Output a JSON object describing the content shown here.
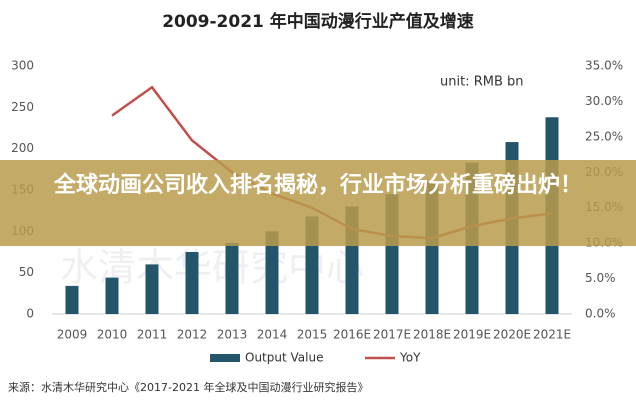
{
  "chart_data": {
    "type": "bar",
    "title": "2009-2021 年中国动漫行业产值及增速",
    "annotation": "unit: RMB bn",
    "watermark": "水清木华研究中心",
    "source": "来源：水清木华研究中心《2017-2021 年全球及中国动漫行业研究报告》",
    "banner": "全球动画公司收入排名揭秘，行业市场分析重磅出炉！",
    "categories": [
      "2009",
      "2010",
      "2011",
      "2012",
      "2013",
      "2014",
      "2015",
      "2016E",
      "2017E",
      "2018E",
      "2019E",
      "2020E",
      "2021E"
    ],
    "series": [
      {
        "name": "Output Value",
        "color": "#24566b",
        "values": [
          34,
          44,
          60,
          75,
          86,
          100,
          118,
          130,
          145,
          160,
          183,
          208,
          238
        ]
      },
      {
        "name": "YoY",
        "color": "#c0504d",
        "axis": "y2",
        "values": [
          null,
          28,
          32,
          24.5,
          20,
          17,
          15,
          12,
          11,
          10.7,
          12.4,
          13.5,
          14.2
        ]
      }
    ],
    "ylim": [
      0,
      300
    ],
    "yticks": [
      0,
      50,
      100,
      150,
      200,
      250,
      300
    ],
    "y2lim": [
      0,
      35
    ],
    "y2ticks": [
      {
        "value": 0,
        "label": "0.0%"
      },
      {
        "value": 5,
        "label": "5.0%"
      },
      {
        "value": 10,
        "label": "10.0%"
      },
      {
        "value": 15,
        "label": "15.0%"
      },
      {
        "value": 20,
        "label": "20.0%"
      },
      {
        "value": 25,
        "label": "25.0%"
      },
      {
        "value": 30,
        "label": "30.0%"
      },
      {
        "value": 35,
        "label": "35.0%"
      }
    ],
    "grid": false
  }
}
